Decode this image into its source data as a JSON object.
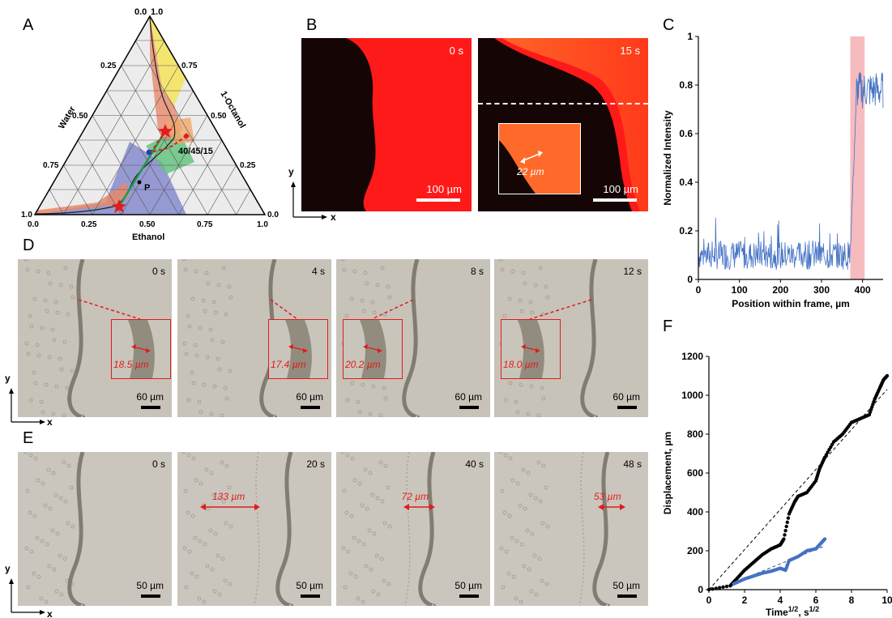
{
  "panels": {
    "A": "A",
    "B": "B",
    "C": "C",
    "D": "D",
    "E": "E",
    "F": "F"
  },
  "ternary": {
    "left_axis": "Water",
    "right_axis": "1-Octanol",
    "bottom_axis": "Ethanol",
    "bottom_ticks": [
      "0.0",
      "0.25",
      "0.50",
      "0.75",
      "1.0"
    ],
    "left_ticks": [
      "1.0",
      "0.75",
      "0.50",
      "0.25",
      "0.0"
    ],
    "right_ticks": [
      "1.0",
      "0.75",
      "0.50",
      "0.25",
      "0.0"
    ],
    "top_label": "0.0",
    "top_label2": "1.0",
    "point_label": "40/45/15",
    "p_label": "P",
    "colors": {
      "orange": "#e8896a",
      "yellow": "#f4e45a",
      "green": "#5fc27a",
      "blue": "#7a7fc9",
      "line_green": "#1a9a4a",
      "red": "#e41a1c"
    }
  },
  "panelB": {
    "frames": [
      {
        "time": "0 s",
        "scale": "100 µm"
      },
      {
        "time": "15 s",
        "scale": "100 µm"
      }
    ],
    "inset_meas": "22 µm",
    "axis_y": "y",
    "axis_x": "x"
  },
  "chart_data": [
    {
      "type": "line",
      "panel": "C",
      "xlabel": "Position within frame, µm",
      "ylabel": "Normalized Intensity",
      "xlim": [
        0,
        450
      ],
      "ylim": [
        0,
        1
      ],
      "xticks": [
        "0",
        "100",
        "200",
        "300",
        "400"
      ],
      "yticks": [
        "0",
        "0.2",
        "0.4",
        "0.6",
        "0.8",
        "1"
      ],
      "highlight": [
        370,
        405
      ],
      "series": [
        {
          "values_summary": "noisy baseline ~0.1 for x<370, sharp rise to ~0.8 at x≈385-450"
        }
      ],
      "color": "#4472c4"
    },
    {
      "type": "scatter",
      "panel": "F",
      "xlabel": "Time",
      "xlabel_sup": "1/2",
      "xlabel_unit": ", s",
      "xlabel_unit_sup": "1/2",
      "ylabel": "Displacement, µm",
      "xlim": [
        0,
        10
      ],
      "ylim": [
        0,
        1200
      ],
      "xticks": [
        "0",
        "2",
        "4",
        "6",
        "8",
        "10"
      ],
      "yticks": [
        "0",
        "200",
        "400",
        "600",
        "800",
        "1000",
        "1200"
      ],
      "series": [
        {
          "color": "#000000",
          "x": [
            0,
            1.2,
            1.5,
            2,
            2.5,
            3,
            3.5,
            4,
            4.2,
            4.5,
            4.8,
            5,
            5.5,
            6,
            6.2,
            6.5,
            7,
            7.5,
            8,
            8.5,
            9,
            9.3,
            9.6,
            9.8,
            10
          ],
          "y": [
            0,
            20,
            50,
            100,
            140,
            180,
            210,
            230,
            260,
            390,
            450,
            480,
            500,
            560,
            620,
            680,
            760,
            800,
            860,
            880,
            900,
            980,
            1040,
            1080,
            1100
          ]
        },
        {
          "color": "#4472c4",
          "x": [
            1.4,
            2,
            2.5,
            3,
            3.5,
            4,
            4.3,
            4.5,
            5,
            5.5,
            6,
            6.3,
            6.5
          ],
          "y": [
            30,
            55,
            70,
            85,
            95,
            110,
            100,
            150,
            170,
            200,
            210,
            240,
            260
          ]
        }
      ],
      "fit_lines": [
        {
          "x": [
            0,
            10
          ],
          "y": [
            0,
            1030
          ]
        },
        {
          "x": [
            1.5,
            6.5
          ],
          "y": [
            40,
            225
          ]
        }
      ]
    }
  ],
  "panelD": {
    "frames": [
      {
        "time": "0 s",
        "meas": "18.5 µm",
        "scale": "60 µm"
      },
      {
        "time": "4 s",
        "meas": "17.4 µm",
        "scale": "60 µm"
      },
      {
        "time": "8 s",
        "meas": "20.2 µm",
        "scale": "60 µm"
      },
      {
        "time": "12 s",
        "meas": "18.0 µm",
        "scale": "60 µm"
      }
    ],
    "axis_y": "y",
    "axis_x": "x"
  },
  "panelE": {
    "frames": [
      {
        "time": "0 s",
        "meas": "",
        "scale": "50 µm"
      },
      {
        "time": "20 s",
        "meas": "133 µm",
        "scale": "50 µm"
      },
      {
        "time": "40 s",
        "meas": "72 µm",
        "scale": "50 µm"
      },
      {
        "time": "48 s",
        "meas": "53 µm",
        "scale": "50 µm"
      }
    ],
    "axis_y": "y",
    "axis_x": "x"
  }
}
